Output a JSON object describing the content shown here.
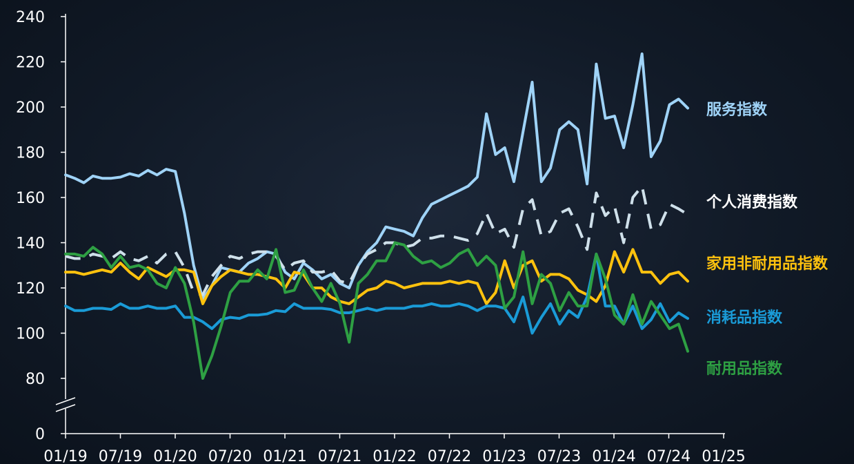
{
  "chart_data": {
    "type": "line",
    "title": "",
    "xlabel": "",
    "ylabel": "",
    "x_axis_type": "date",
    "x_tick_labels": [
      "01/19",
      "07/19",
      "01/20",
      "07/20",
      "01/21",
      "07/21",
      "01/22",
      "07/22",
      "01/23",
      "07/23",
      "01/24",
      "07/24",
      "01/25"
    ],
    "x_range": [
      "2019-01",
      "2025-01"
    ],
    "y_ticks": [
      0,
      80,
      100,
      120,
      140,
      160,
      180,
      200,
      220,
      240
    ],
    "y_axis_break": [
      0,
      80
    ],
    "ylim": [
      0,
      240
    ],
    "grid": false,
    "legend_placement": "inline-right",
    "series": [
      {
        "name": "服务指数",
        "color": "#9fd3f7",
        "style": "solid",
        "values": [
          170,
          168.5,
          166.5,
          169.5,
          168.5,
          168.5,
          169,
          170.5,
          169.5,
          172,
          170,
          172.5,
          171.5,
          153,
          130,
          115,
          121,
          129,
          128,
          127,
          131,
          133,
          136,
          135,
          127,
          124,
          131,
          128,
          124,
          126,
          122,
          120,
          130,
          136,
          140,
          147,
          146,
          145,
          143,
          151,
          157,
          159,
          161,
          163,
          165,
          169,
          197,
          179,
          182,
          167,
          189,
          211,
          167,
          173,
          190,
          193.5,
          190,
          166,
          219,
          195,
          196,
          182,
          201,
          223.5,
          178,
          185,
          201,
          203.5,
          199.5
        ]
      },
      {
        "name": "个人消费指数",
        "color": "#cfe0ea",
        "style": "dashed",
        "values": [
          134,
          133,
          133,
          135,
          134,
          133,
          136,
          133,
          132,
          134,
          131,
          135,
          136,
          129,
          118,
          117,
          125,
          130,
          134,
          133,
          135,
          136,
          136,
          134,
          128,
          131,
          132,
          127,
          127,
          128,
          123,
          122,
          130,
          135,
          137,
          140,
          140,
          138,
          139,
          142,
          142,
          143,
          143,
          142,
          141,
          144,
          153,
          144,
          146,
          138,
          155,
          159,
          143,
          145,
          153,
          155,
          147,
          137,
          162,
          152,
          156,
          140,
          160,
          165,
          146,
          148,
          157,
          155,
          152.5
        ]
      },
      {
        "name": "家用非耐用品指数",
        "color": "#ffc20e",
        "style": "solid",
        "values": [
          127,
          127,
          126,
          127,
          128,
          127,
          131,
          127,
          124,
          129,
          127,
          125,
          128,
          128,
          127,
          113,
          121,
          125,
          128,
          127,
          126,
          126,
          125,
          124,
          120,
          127,
          126,
          120,
          120,
          116,
          114,
          113,
          116,
          119,
          120,
          123,
          122,
          120,
          121,
          122,
          122,
          122,
          123,
          122,
          123,
          122,
          113,
          118,
          132,
          120,
          130,
          132,
          123,
          126,
          126,
          124,
          119,
          117,
          114,
          121,
          136,
          127,
          137,
          127,
          127,
          122,
          126,
          127,
          123
        ]
      },
      {
        "name": "消耗品指数",
        "color": "#1a9bd7",
        "style": "solid",
        "values": [
          112,
          110,
          110,
          111,
          111,
          110.5,
          113,
          111,
          111,
          112,
          111,
          111,
          112,
          107,
          107,
          105,
          102,
          106,
          107,
          106.5,
          108,
          108,
          108.5,
          110,
          109.5,
          113,
          111,
          111,
          111,
          110.5,
          109,
          109,
          110,
          111,
          110,
          111,
          111,
          111,
          112,
          112,
          113,
          112,
          112,
          113,
          112,
          110,
          112,
          112,
          111,
          105,
          116,
          100,
          107,
          113,
          104,
          110,
          107,
          116,
          135,
          112,
          112,
          104,
          112,
          102,
          106,
          113,
          105,
          109,
          106.5
        ]
      },
      {
        "name": "耐用品指数",
        "color": "#2ea043",
        "style": "solid",
        "values": [
          135,
          135,
          134,
          138,
          135,
          129,
          134,
          129,
          130,
          128,
          122,
          120,
          129,
          122,
          105,
          80,
          90,
          103,
          118,
          123,
          123,
          128,
          124,
          137,
          118,
          119,
          128,
          120,
          114,
          122,
          113,
          96,
          122,
          126,
          132,
          132,
          140,
          139,
          134,
          131,
          132,
          129,
          131,
          135,
          137,
          130,
          134,
          130,
          111,
          116,
          136,
          113,
          126,
          122,
          110,
          118,
          112,
          112,
          135,
          124,
          108,
          104,
          117,
          104,
          114,
          108,
          102,
          104,
          92
        ]
      }
    ]
  }
}
